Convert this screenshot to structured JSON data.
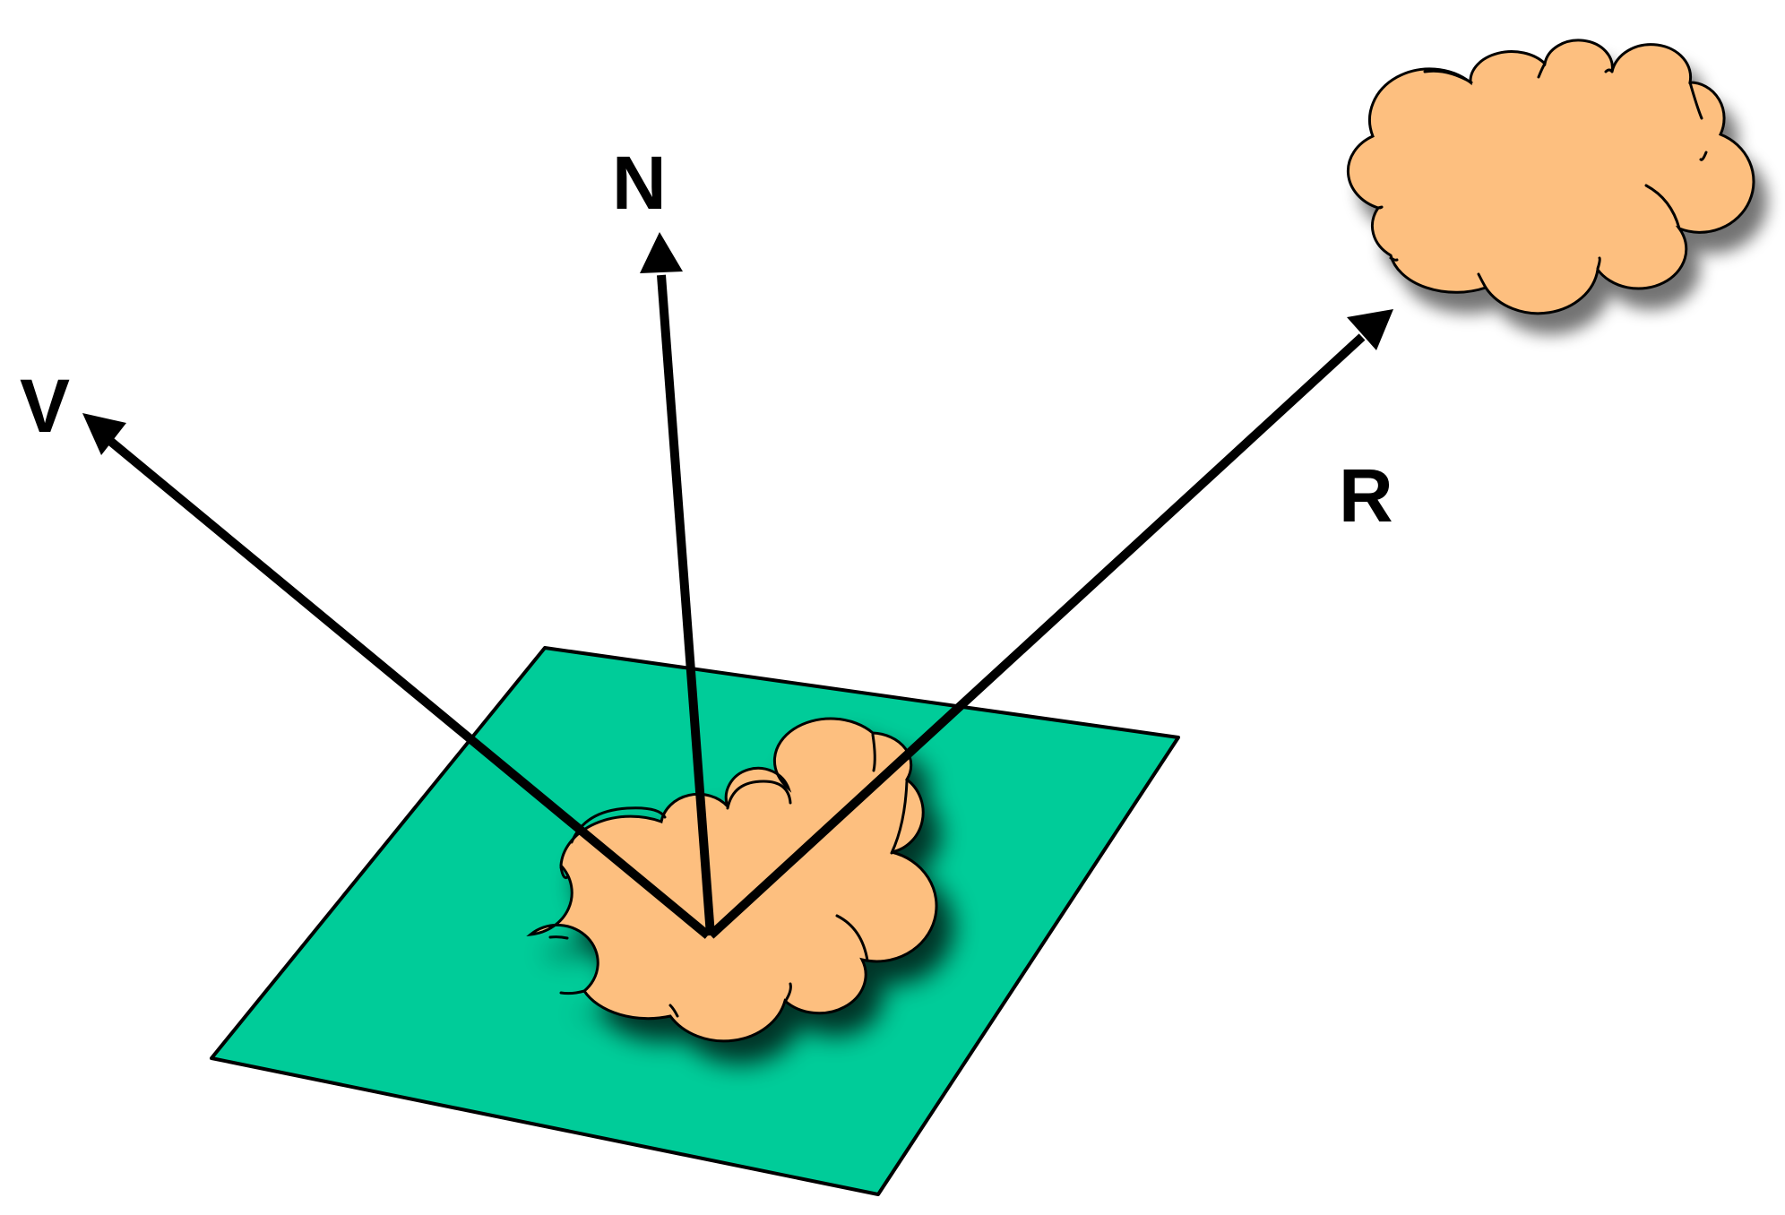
{
  "colors": {
    "plane": "#00cc99",
    "cloud": "#fdbf7f",
    "outline": "#000000",
    "vector": "#000000"
  },
  "labels": {
    "view_vector": "V",
    "normal_vector": "N",
    "reflection_vector": "R"
  }
}
